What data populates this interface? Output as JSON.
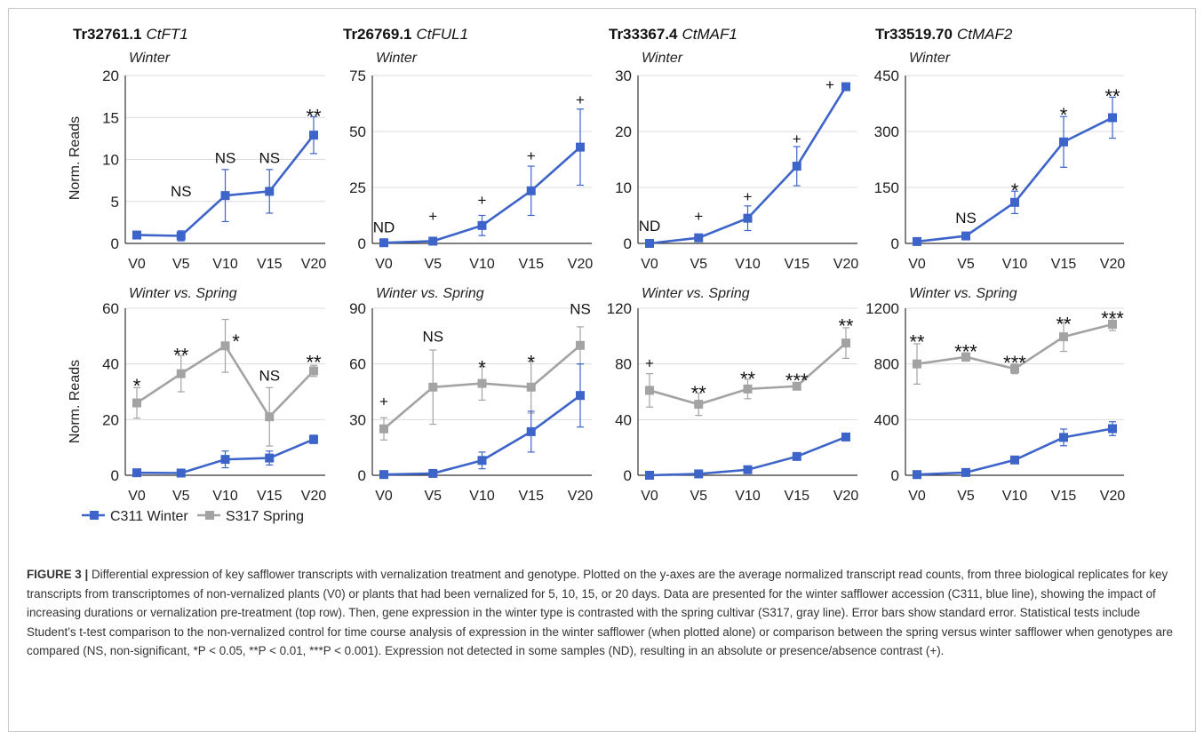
{
  "colors": {
    "winter": "#3d64c9",
    "spring": "#a3a3a3",
    "grid": "#dcdcdc",
    "axis": "#333333"
  },
  "legend": [
    {
      "label": "C311 Winter",
      "color": "#3d64c9"
    },
    {
      "label": "S317 Spring",
      "color": "#a3a3a3"
    }
  ],
  "ylabel": "Norm. Reads",
  "categories": [
    "V0",
    "V5",
    "V10",
    "V15",
    "V20"
  ],
  "chart_data": [
    {
      "type": "line",
      "gene_id": "Tr32761.1",
      "gene_name": "CtFT1",
      "subtitle": "Winter",
      "ylim": [
        0,
        20
      ],
      "yticks": [
        0,
        5,
        10,
        15,
        20
      ],
      "series": [
        {
          "name": "C311 Winter",
          "values": [
            1.0,
            0.9,
            5.7,
            6.2,
            12.9
          ],
          "err": [
            0.3,
            0.6,
            3.1,
            2.6,
            2.2
          ]
        }
      ],
      "annotations": [
        {
          "x": "V5",
          "text": "NS",
          "y": 5.6
        },
        {
          "x": "V10",
          "text": "NS",
          "y": 9.6
        },
        {
          "x": "V15",
          "text": "NS",
          "y": 9.6
        },
        {
          "x": "V20",
          "text": "**",
          "y": 15.6
        }
      ]
    },
    {
      "type": "line",
      "gene_id": "Tr26769.1",
      "gene_name": "CtFUL1",
      "subtitle": "Winter",
      "ylim": [
        0,
        75
      ],
      "yticks": [
        0,
        25,
        50,
        75
      ],
      "series": [
        {
          "name": "C311 Winter",
          "values": [
            0.3,
            1.0,
            8.0,
            23.5,
            43.0
          ],
          "err": [
            0.2,
            0.8,
            4.5,
            11.0,
            17.0
          ]
        }
      ],
      "annotations": [
        {
          "x": "V0",
          "text": "ND",
          "y": 5
        },
        {
          "x": "V5",
          "text": "+",
          "y": 10
        },
        {
          "x": "V10",
          "text": "+",
          "y": 17
        },
        {
          "x": "V15",
          "text": "+",
          "y": 37
        },
        {
          "x": "V20",
          "text": "+",
          "y": 62
        }
      ]
    },
    {
      "type": "line",
      "gene_id": "Tr33367.4",
      "gene_name": "CtMAF1",
      "subtitle": "Winter",
      "ylim": [
        0,
        30
      ],
      "yticks": [
        0,
        10,
        20,
        30
      ],
      "series": [
        {
          "name": "C311 Winter",
          "values": [
            0.0,
            1.0,
            4.5,
            13.8,
            28.0
          ],
          "err": [
            0.1,
            0.4,
            2.2,
            3.5,
            0.5
          ]
        }
      ],
      "annotations": [
        {
          "x": "V0",
          "text": "ND",
          "y": 2.2
        },
        {
          "x": "V5",
          "text": "+",
          "y": 4.0
        },
        {
          "x": "V10",
          "text": "+",
          "y": 7.5
        },
        {
          "x": "V15",
          "text": "+",
          "y": 17.8
        },
        {
          "x": "V20",
          "text": "+",
          "y": 27.5,
          "dx": -18
        }
      ]
    },
    {
      "type": "line",
      "gene_id": "Tr33519.70",
      "gene_name": "CtMAF2",
      "subtitle": "Winter",
      "ylim": [
        0,
        450
      ],
      "yticks": [
        0,
        150,
        300,
        450
      ],
      "series": [
        {
          "name": "C311 Winter",
          "values": [
            5,
            20,
            110,
            272,
            337
          ],
          "err": [
            3,
            6,
            30,
            68,
            55
          ]
        }
      ],
      "annotations": [
        {
          "x": "V5",
          "text": "NS",
          "y": 55
        },
        {
          "x": "V10",
          "text": "*",
          "y": 152
        },
        {
          "x": "V15",
          "text": "*",
          "y": 355
        },
        {
          "x": "V20",
          "text": "**",
          "y": 405
        }
      ]
    },
    {
      "type": "line",
      "subtitle": "Winter vs. Spring",
      "ylim": [
        0,
        60
      ],
      "yticks": [
        0,
        20,
        40,
        60
      ],
      "series": [
        {
          "name": "C311 Winter",
          "values": [
            0.9,
            0.8,
            5.7,
            6.2,
            12.9
          ],
          "err": [
            0.3,
            0.5,
            3.0,
            2.5,
            1.5
          ]
        },
        {
          "name": "S317 Spring",
          "values": [
            26,
            36.5,
            46.5,
            21,
            37.5
          ],
          "err": [
            5.5,
            6.5,
            9.5,
            10.5,
            2.0
          ]
        }
      ],
      "annotations": [
        {
          "x": "V0",
          "text": "*",
          "y": 33.5
        },
        {
          "x": "V5",
          "text": "**",
          "y": 44.5
        },
        {
          "x": "V10",
          "text": "*",
          "y": 49.5,
          "dx": 12
        },
        {
          "x": "V15",
          "text": "NS",
          "y": 34
        },
        {
          "x": "V20",
          "text": "**",
          "y": 42
        }
      ]
    },
    {
      "type": "line",
      "subtitle": "Winter vs. Spring",
      "ylim": [
        0,
        90
      ],
      "yticks": [
        0,
        30,
        60,
        90
      ],
      "series": [
        {
          "name": "C311 Winter",
          "values": [
            0.4,
            1.0,
            8.0,
            23.5,
            43.0
          ],
          "err": [
            0.2,
            0.8,
            4.5,
            11.0,
            17.0
          ]
        },
        {
          "name": "S317 Spring",
          "values": [
            25,
            47.5,
            49.5,
            47.5,
            70
          ],
          "err": [
            6,
            20,
            9,
            14,
            10
          ]
        }
      ],
      "annotations": [
        {
          "x": "V0",
          "text": "+",
          "y": 37
        },
        {
          "x": "V5",
          "text": "NS",
          "y": 72
        },
        {
          "x": "V10",
          "text": "*",
          "y": 60
        },
        {
          "x": "V15",
          "text": "*",
          "y": 63
        },
        {
          "x": "V20",
          "text": "NS",
          "y": 87
        }
      ]
    },
    {
      "type": "line",
      "subtitle": "Winter vs. Spring",
      "ylim": [
        0,
        120
      ],
      "yticks": [
        0,
        40,
        80,
        120
      ],
      "series": [
        {
          "name": "C311 Winter",
          "values": [
            0,
            1,
            4,
            13.5,
            27.5
          ],
          "err": [
            0.3,
            0.5,
            1.5,
            2.5,
            1.5
          ]
        },
        {
          "name": "S317 Spring",
          "values": [
            61,
            51,
            62,
            64,
            95
          ],
          "err": [
            12,
            8,
            7,
            2,
            11
          ]
        }
      ],
      "annotations": [
        {
          "x": "V0",
          "text": "+",
          "y": 77
        },
        {
          "x": "V5",
          "text": "**",
          "y": 62
        },
        {
          "x": "V10",
          "text": "**",
          "y": 72
        },
        {
          "x": "V15",
          "text": "***",
          "y": 71
        },
        {
          "x": "V20",
          "text": "**",
          "y": 110
        }
      ]
    },
    {
      "type": "line",
      "subtitle": "Winter vs. Spring",
      "ylim": [
        0,
        1200
      ],
      "yticks": [
        0,
        400,
        800,
        1200
      ],
      "series": [
        {
          "name": "C311 Winter",
          "values": [
            5,
            20,
            110,
            272,
            335
          ],
          "err": [
            3,
            8,
            20,
            60,
            50
          ]
        },
        {
          "name": "S317 Spring",
          "values": [
            800,
            850,
            765,
            995,
            1085
          ],
          "err": [
            145,
            30,
            35,
            105,
            45
          ]
        }
      ],
      "annotations": [
        {
          "x": "V0",
          "text": "**",
          "y": 985
        },
        {
          "x": "V5",
          "text": "***",
          "y": 915
        },
        {
          "x": "V10",
          "text": "***",
          "y": 835
        },
        {
          "x": "V15",
          "text": "**",
          "y": 1115
        },
        {
          "x": "V20",
          "text": "***",
          "y": 1155
        }
      ]
    }
  ],
  "caption": {
    "label": "FIGURE 3 |",
    "text": " Differential expression of key safflower transcripts with vernalization treatment and genotype. Plotted on the y-axes are the average normalized transcript read counts, from three biological replicates for key transcripts from transcriptomes of non-vernalized plants (V0) or plants that had been vernalized for 5, 10, 15, or 20 days. Data are presented for the winter safflower accession (C311, blue line), showing the impact of increasing durations or vernalization pre-treatment (top row). Then, gene expression in the winter type is contrasted with the spring cultivar (S317, gray line). Error bars show standard error. Statistical tests include Student’s t-test comparison to the non-vernalized control for time course analysis of expression in the winter safflower (when plotted alone) or comparison between the spring versus winter safflower when genotypes are compared (NS, non-significant, *P < 0.05, **P < 0.01, ***P < 0.001). Expression not detected in some samples (ND), resulting in an absolute or presence/absence contrast (+)."
  }
}
